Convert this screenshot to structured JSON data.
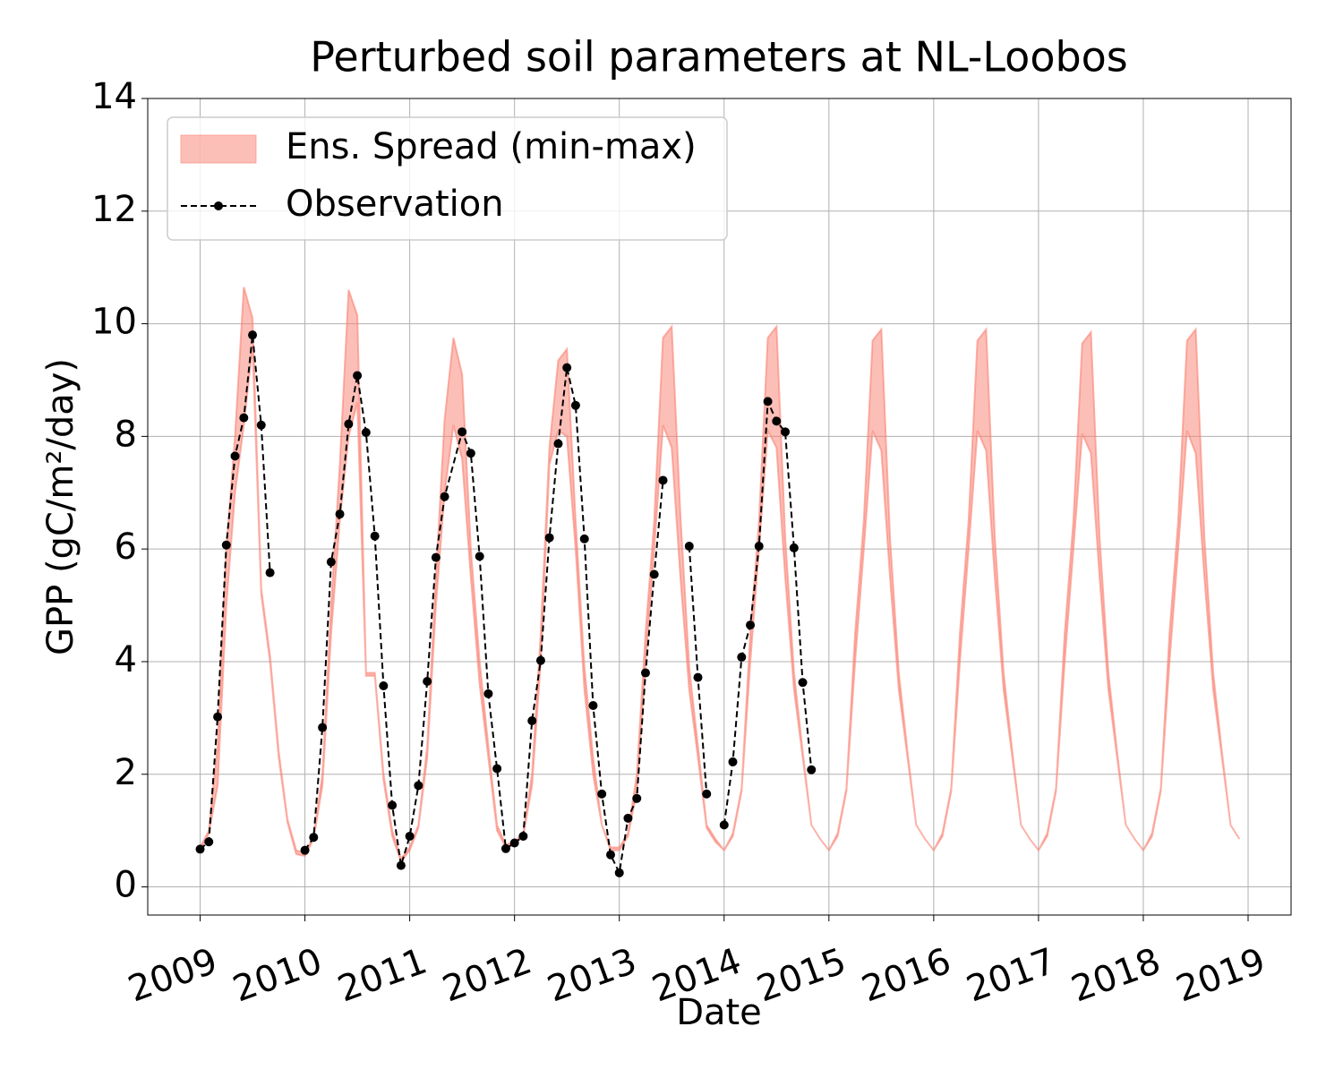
{
  "chart_data": {
    "type": "band-line",
    "title": "Perturbed soil parameters at NL-Loobos",
    "xlabel": "Date",
    "ylabel": "GPP  (gC/m²/day)",
    "xlim": [
      2008.5,
      2019.41
    ],
    "xticks": [
      2009,
      2010,
      2011,
      2012,
      2013,
      2014,
      2015,
      2016,
      2017,
      2018,
      2019
    ],
    "ylim": [
      -0.5,
      14
    ],
    "yticks": [
      0,
      2,
      4,
      6,
      8,
      10,
      12,
      14
    ],
    "grid": true,
    "legend": "upper left",
    "series": [
      {
        "name": "Ens. Spread (min-max)",
        "kind": "band",
        "color": "#fa8072",
        "x": [
          2009.0,
          2009.083,
          2009.167,
          2009.25,
          2009.333,
          2009.417,
          2009.5,
          2009.583,
          2009.667,
          2009.75,
          2009.833,
          2009.917,
          2010.0,
          2010.083,
          2010.167,
          2010.25,
          2010.333,
          2010.417,
          2010.5,
          2010.583,
          2010.667,
          2010.75,
          2010.833,
          2010.917,
          2011.0,
          2011.083,
          2011.167,
          2011.25,
          2011.333,
          2011.417,
          2011.5,
          2011.583,
          2011.667,
          2011.75,
          2011.833,
          2011.917,
          2012.0,
          2012.083,
          2012.167,
          2012.25,
          2012.333,
          2012.417,
          2012.5,
          2012.583,
          2012.667,
          2012.75,
          2012.833,
          2012.917,
          2013.0,
          2013.083,
          2013.167,
          2013.25,
          2013.333,
          2013.417,
          2013.5,
          2013.583,
          2013.667,
          2013.75,
          2013.833,
          2013.917,
          2014.0,
          2014.083,
          2014.167,
          2014.25,
          2014.333,
          2014.417,
          2014.5,
          2014.583,
          2014.667,
          2014.75,
          2014.833,
          2014.917,
          2015.0,
          2015.083,
          2015.167,
          2015.25,
          2015.333,
          2015.417,
          2015.5,
          2015.583,
          2015.667,
          2015.75,
          2015.833,
          2015.917,
          2016.0,
          2016.083,
          2016.167,
          2016.25,
          2016.333,
          2016.417,
          2016.5,
          2016.583,
          2016.667,
          2016.75,
          2016.833,
          2016.917,
          2017.0,
          2017.083,
          2017.167,
          2017.25,
          2017.333,
          2017.417,
          2017.5,
          2017.583,
          2017.667,
          2017.75,
          2017.833,
          2017.917,
          2018.0,
          2018.083,
          2018.167,
          2018.25,
          2018.333,
          2018.417,
          2018.5,
          2018.583,
          2018.667,
          2018.75,
          2018.833,
          2018.917
        ],
        "upper": [
          0.7,
          1.0,
          2.5,
          6.0,
          8.0,
          10.65,
          10.1,
          5.3,
          4.1,
          2.4,
          1.2,
          0.65,
          0.6,
          0.9,
          2.0,
          5.0,
          7.5,
          10.6,
          10.15,
          3.8,
          3.8,
          2.0,
          1.0,
          0.5,
          0.7,
          1.1,
          2.5,
          5.5,
          8.3,
          9.75,
          9.1,
          6.0,
          4.0,
          2.5,
          1.1,
          0.75,
          0.8,
          0.95,
          2.0,
          4.5,
          7.8,
          9.35,
          9.55,
          6.5,
          3.9,
          2.3,
          1.1,
          0.7,
          0.7,
          0.95,
          2.0,
          4.5,
          6.5,
          9.75,
          9.95,
          6.6,
          3.9,
          2.5,
          1.1,
          0.85,
          0.65,
          0.95,
          1.75,
          4.5,
          6.5,
          9.75,
          9.95,
          6.2,
          3.8,
          2.4,
          1.1,
          0.85,
          0.65,
          0.95,
          1.75,
          4.5,
          6.5,
          9.7,
          9.9,
          6.2,
          3.8,
          2.4,
          1.1,
          0.85,
          0.65,
          0.95,
          1.75,
          4.5,
          6.5,
          9.7,
          9.9,
          6.2,
          3.8,
          2.4,
          1.1,
          0.85,
          0.65,
          0.95,
          1.75,
          4.5,
          6.5,
          9.65,
          9.85,
          6.2,
          3.8,
          2.4,
          1.1,
          0.85,
          0.65,
          0.95,
          1.75,
          4.5,
          6.5,
          9.7,
          9.9,
          6.2,
          3.8,
          2.4,
          1.1,
          0.85
        ],
        "lower": [
          0.65,
          0.95,
          1.8,
          5.0,
          7.0,
          8.2,
          9.6,
          5.2,
          4.0,
          2.3,
          1.15,
          0.58,
          0.55,
          0.85,
          1.8,
          4.5,
          6.5,
          8.0,
          8.6,
          3.75,
          3.75,
          1.9,
          0.9,
          0.45,
          0.65,
          1.05,
          2.3,
          5.0,
          7.0,
          8.2,
          7.6,
          5.5,
          3.6,
          2.3,
          1.0,
          0.7,
          0.75,
          0.9,
          1.8,
          4.0,
          7.5,
          8.1,
          8.0,
          6.0,
          3.5,
          2.0,
          1.1,
          0.65,
          0.65,
          0.9,
          1.7,
          4.0,
          6.0,
          8.2,
          7.8,
          5.5,
          3.5,
          2.3,
          1.05,
          0.8,
          0.65,
          0.9,
          1.7,
          4.0,
          6.0,
          8.1,
          7.8,
          5.5,
          3.5,
          2.3,
          1.1,
          0.85,
          0.65,
          0.9,
          1.7,
          4.0,
          6.0,
          8.1,
          7.75,
          5.5,
          3.5,
          2.3,
          1.1,
          0.85,
          0.65,
          0.9,
          1.7,
          4.0,
          6.0,
          8.1,
          7.75,
          5.5,
          3.5,
          2.3,
          1.1,
          0.85,
          0.65,
          0.9,
          1.7,
          4.0,
          6.0,
          8.05,
          7.7,
          5.5,
          3.5,
          2.3,
          1.1,
          0.85,
          0.65,
          0.9,
          1.7,
          4.0,
          6.0,
          8.1,
          7.7,
          5.5,
          3.5,
          2.3,
          1.1,
          0.85
        ]
      },
      {
        "name": "Observation",
        "kind": "line",
        "color": "#000000",
        "x": [
          2009.0,
          2009.083,
          2009.167,
          2009.25,
          2009.333,
          2009.417,
          2009.5,
          2009.583,
          2009.667,
          2009.75,
          2009.833,
          2009.917,
          2010.0,
          2010.083,
          2010.167,
          2010.25,
          2010.333,
          2010.417,
          2010.5,
          2010.583,
          2010.667,
          2010.75,
          2010.833,
          2010.917,
          2011.0,
          2011.083,
          2011.167,
          2011.25,
          2011.333,
          2011.5,
          2011.583,
          2011.667,
          2011.75,
          2011.833,
          2011.917,
          2012.0,
          2012.083,
          2012.167,
          2012.25,
          2012.333,
          2012.417,
          2012.5,
          2012.583,
          2012.667,
          2012.75,
          2012.833,
          2012.917,
          2013.0,
          2013.083,
          2013.167,
          2013.25,
          2013.333,
          2013.417,
          2013.5,
          2013.583,
          2013.667,
          2013.75,
          2013.833,
          2013.917,
          2014.0,
          2014.083,
          2014.167,
          2014.25,
          2014.333,
          2014.417,
          2014.5,
          2014.583,
          2014.667,
          2014.75,
          2014.833
        ],
        "values": [
          0.67,
          0.8,
          3.02,
          6.07,
          7.65,
          8.33,
          9.8,
          8.2,
          5.58,
          null,
          null,
          null,
          0.65,
          0.88,
          2.83,
          5.77,
          6.62,
          8.22,
          9.08,
          8.07,
          6.23,
          3.57,
          1.45,
          0.38,
          0.9,
          1.8,
          3.65,
          5.85,
          6.93,
          8.08,
          7.7,
          5.87,
          3.43,
          2.1,
          0.68,
          0.78,
          0.9,
          2.95,
          4.02,
          6.2,
          7.87,
          9.22,
          8.55,
          6.18,
          3.22,
          1.65,
          0.57,
          0.25,
          1.22,
          1.57,
          3.8,
          5.55,
          7.22,
          null,
          null,
          6.05,
          3.72,
          1.65,
          null,
          1.1,
          2.22,
          4.08,
          4.65,
          6.05,
          8.62,
          8.27,
          8.08,
          6.02,
          3.63,
          2.08
        ]
      }
    ]
  }
}
